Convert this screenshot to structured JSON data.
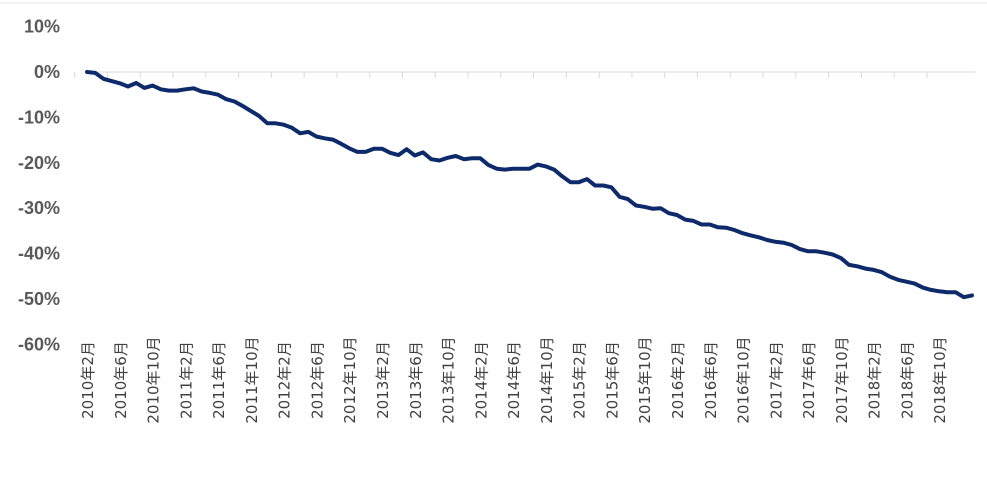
{
  "chart_data": {
    "type": "line",
    "title": "",
    "xlabel": "",
    "ylabel": "",
    "ylim": [
      -60,
      10
    ],
    "y_unit": "%",
    "grid": false,
    "legend": "none",
    "line_color": "#0d2a6b",
    "y_ticks": [
      {
        "value": 10,
        "label": "10%"
      },
      {
        "value": 0,
        "label": "0%"
      },
      {
        "value": -10,
        "label": "-10%"
      },
      {
        "value": -20,
        "label": "-20%"
      },
      {
        "value": -30,
        "label": "-30%"
      },
      {
        "value": -40,
        "label": "-40%"
      },
      {
        "value": -50,
        "label": "-50%"
      },
      {
        "value": -60,
        "label": "-60%"
      }
    ],
    "x_ticks": [
      {
        "index": 0,
        "label": "2010年2月"
      },
      {
        "index": 4,
        "label": "2010年6月"
      },
      {
        "index": 8,
        "label": "2010年10月"
      },
      {
        "index": 12,
        "label": "2011年2月"
      },
      {
        "index": 16,
        "label": "2011年6月"
      },
      {
        "index": 20,
        "label": "2011年10月"
      },
      {
        "index": 24,
        "label": "2012年2月"
      },
      {
        "index": 28,
        "label": "2012年6月"
      },
      {
        "index": 32,
        "label": "2012年10月"
      },
      {
        "index": 36,
        "label": "2013年2月"
      },
      {
        "index": 40,
        "label": "2013年6月"
      },
      {
        "index": 44,
        "label": "2013年10月"
      },
      {
        "index": 48,
        "label": "2014年2月"
      },
      {
        "index": 52,
        "label": "2014年6月"
      },
      {
        "index": 56,
        "label": "2014年10月"
      },
      {
        "index": 60,
        "label": "2015年2月"
      },
      {
        "index": 64,
        "label": "2015年6月"
      },
      {
        "index": 68,
        "label": "2015年10月"
      },
      {
        "index": 72,
        "label": "2016年2月"
      },
      {
        "index": 76,
        "label": "2016年6月"
      },
      {
        "index": 80,
        "label": "2016年10月"
      },
      {
        "index": 84,
        "label": "2017年2月"
      },
      {
        "index": 88,
        "label": "2017年6月"
      },
      {
        "index": 92,
        "label": "2017年10月"
      },
      {
        "index": 96,
        "label": "2018年2月"
      },
      {
        "index": 100,
        "label": "2018年6月"
      },
      {
        "index": 104,
        "label": "2018年10月"
      }
    ],
    "series": [
      {
        "values": [
          0,
          -0.2,
          -1.5,
          -2.0,
          -2.5,
          -3.2,
          -2.4,
          -3.5,
          -3.0,
          -3.8,
          -4.1,
          -4.1,
          -3.8,
          -3.6,
          -4.3,
          -4.6,
          -5.0,
          -6.0,
          -6.5,
          -7.5,
          -8.6,
          -9.7,
          -11.3,
          -11.3,
          -11.6,
          -12.3,
          -13.5,
          -13.2,
          -14.2,
          -14.6,
          -14.9,
          -15.8,
          -16.8,
          -17.6,
          -17.6,
          -16.9,
          -16.9,
          -17.8,
          -18.3,
          -17.0,
          -18.4,
          -17.7,
          -19.2,
          -19.5,
          -18.9,
          -18.5,
          -19.2,
          -19.0,
          -19.0,
          -20.5,
          -21.3,
          -21.5,
          -21.3,
          -21.3,
          -21.3,
          -20.4,
          -20.8,
          -21.5,
          -23.0,
          -24.3,
          -24.3,
          -23.6,
          -25.0,
          -25.0,
          -25.4,
          -27.5,
          -28.0,
          -29.4,
          -29.7,
          -30.1,
          -30.0,
          -31.1,
          -31.5,
          -32.5,
          -32.8,
          -33.6,
          -33.6,
          -34.2,
          -34.3,
          -34.8,
          -35.5,
          -36.0,
          -36.4,
          -37.0,
          -37.4,
          -37.6,
          -38.1,
          -39.0,
          -39.5,
          -39.5,
          -39.8,
          -40.2,
          -41.0,
          -42.5,
          -42.8,
          -43.3,
          -43.6,
          -44.1,
          -45.1,
          -45.8,
          -46.2,
          -46.6,
          -47.5,
          -48.0,
          -48.3,
          -48.5,
          -48.5,
          -49.6,
          -49.2
        ]
      }
    ]
  }
}
